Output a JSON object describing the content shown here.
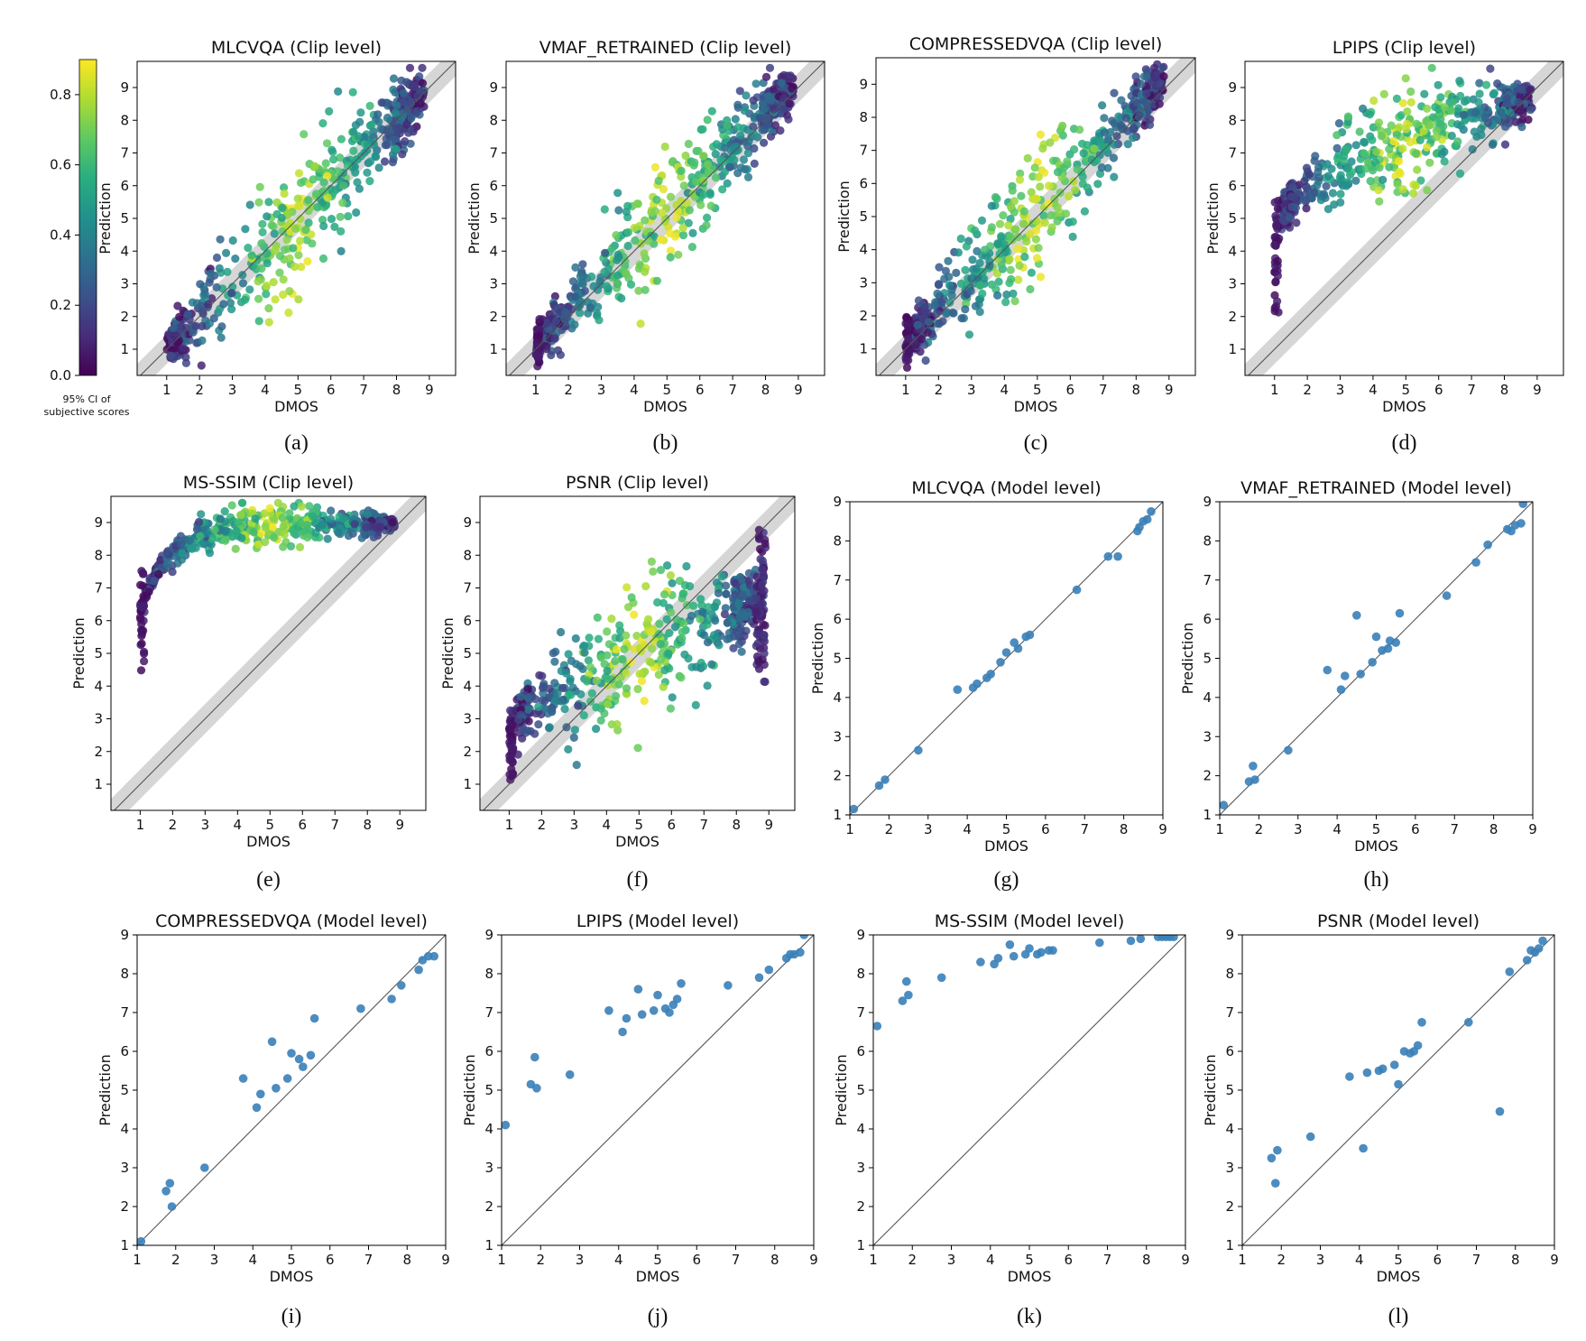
{
  "chart_data": [
    {
      "id": "a",
      "type": "scatter",
      "level": "clip",
      "title": "MLCVQA (Clip level)",
      "caption": "(a)",
      "xlabel": "DMOS",
      "ylabel": "Prediction",
      "xlim": [
        0.1,
        9.8
      ],
      "ylim": [
        0.2,
        9.8
      ],
      "xticks": [
        1,
        2,
        3,
        4,
        5,
        6,
        7,
        8,
        9
      ],
      "yticks": [
        1,
        2,
        3,
        4,
        5,
        6,
        7,
        8,
        9
      ],
      "identity_line": true,
      "ci_band": true,
      "color_by": "95% CI of subjective scores",
      "trend": {
        "spread": 0.95,
        "bias": 0,
        "floor": false,
        "ceil": false
      },
      "seed": 11
    },
    {
      "id": "b",
      "type": "scatter",
      "level": "clip",
      "title": "VMAF_RETRAINED (Clip level)",
      "caption": "(b)",
      "xlabel": "DMOS",
      "ylabel": "Prediction",
      "xlim": [
        0.1,
        9.8
      ],
      "ylim": [
        0.2,
        9.8
      ],
      "xticks": [
        1,
        2,
        3,
        4,
        5,
        6,
        7,
        8,
        9
      ],
      "yticks": [
        1,
        2,
        3,
        4,
        5,
        6,
        7,
        8,
        9
      ],
      "identity_line": true,
      "ci_band": true,
      "color_by": "95% CI of subjective scores",
      "trend": {
        "spread": 0.85,
        "bias": 0.15,
        "floor": true,
        "ceil": false
      },
      "seed": 23
    },
    {
      "id": "c",
      "type": "scatter",
      "level": "clip",
      "title": "COMPRESSEDVQA (Clip level)",
      "caption": "(c)",
      "xlabel": "DMOS",
      "ylabel": "Prediction",
      "xlim": [
        0.1,
        9.8
      ],
      "ylim": [
        0.2,
        9.8
      ],
      "xticks": [
        1,
        2,
        3,
        4,
        5,
        6,
        7,
        8,
        9
      ],
      "yticks": [
        1,
        2,
        3,
        4,
        5,
        6,
        7,
        8,
        9
      ],
      "identity_line": true,
      "ci_band": true,
      "color_by": "95% CI of subjective scores",
      "trend": {
        "spread": 0.85,
        "bias": 0.25,
        "floor": true,
        "ceil": false
      },
      "seed": 37
    },
    {
      "id": "d",
      "type": "scatter",
      "level": "clip",
      "title": "LPIPS (Clip level)",
      "caption": "(d)",
      "xlabel": "DMOS",
      "ylabel": "Prediction",
      "xlim": [
        0.1,
        9.8
      ],
      "ylim": [
        0.2,
        9.8
      ],
      "xticks": [
        1,
        2,
        3,
        4,
        5,
        6,
        7,
        8,
        9
      ],
      "yticks": [
        1,
        2,
        3,
        4,
        5,
        6,
        7,
        8,
        9
      ],
      "identity_line": true,
      "ci_band": true,
      "color_by": "95% CI of subjective scores",
      "trend": {
        "curve": "log",
        "lo": 4.2,
        "hi": 8.6,
        "spread": 0.75,
        "floor": true
      },
      "seed": 41
    },
    {
      "id": "e",
      "type": "scatter",
      "level": "clip",
      "title": "MS-SSIM (Clip level)",
      "caption": "(e)",
      "xlabel": "DMOS",
      "ylabel": "Prediction",
      "xlim": [
        0.1,
        9.8
      ],
      "ylim": [
        0.2,
        9.8
      ],
      "xticks": [
        1,
        2,
        3,
        4,
        5,
        6,
        7,
        8,
        9
      ],
      "yticks": [
        1,
        2,
        3,
        4,
        5,
        6,
        7,
        8,
        9
      ],
      "identity_line": true,
      "ci_band": true,
      "color_by": "95% CI of subjective scores",
      "trend": {
        "curve": "sat",
        "lo": 6.3,
        "hi": 8.95,
        "spread": 0.35,
        "floor": true
      },
      "seed": 53
    },
    {
      "id": "f",
      "type": "scatter",
      "level": "clip",
      "title": "PSNR (Clip level)",
      "caption": "(f)",
      "xlabel": "DMOS",
      "ylabel": "Prediction",
      "xlim": [
        0.1,
        9.8
      ],
      "ylim": [
        0.2,
        9.8
      ],
      "xticks": [
        1,
        2,
        3,
        4,
        5,
        6,
        7,
        8,
        9
      ],
      "yticks": [
        1,
        2,
        3,
        4,
        5,
        6,
        7,
        8,
        9
      ],
      "identity_line": true,
      "ci_band": true,
      "color_by": "95% CI of subjective scores",
      "trend": {
        "curve": "flat",
        "lo": 3.0,
        "hi": 6.8,
        "spread": 1.0,
        "floor": true,
        "ceil": true
      },
      "seed": 67
    },
    {
      "id": "g",
      "type": "scatter",
      "level": "model",
      "title": "MLCVQA (Model level)",
      "caption": "(g)",
      "xlabel": "DMOS",
      "ylabel": "Prediction",
      "xlim": [
        1,
        9
      ],
      "ylim": [
        1,
        9
      ],
      "xticks": [
        1,
        2,
        3,
        4,
        5,
        6,
        7,
        8,
        9
      ],
      "yticks": [
        1,
        2,
        3,
        4,
        5,
        6,
        7,
        8,
        9
      ],
      "identity_line": true,
      "points": [
        [
          1.1,
          1.15
        ],
        [
          1.75,
          1.75
        ],
        [
          1.9,
          1.9
        ],
        [
          2.75,
          2.65
        ],
        [
          3.75,
          4.2
        ],
        [
          4.15,
          4.25
        ],
        [
          4.25,
          4.35
        ],
        [
          4.5,
          4.5
        ],
        [
          4.6,
          4.6
        ],
        [
          4.85,
          4.9
        ],
        [
          5.0,
          5.15
        ],
        [
          5.2,
          5.4
        ],
        [
          5.3,
          5.25
        ],
        [
          5.5,
          5.55
        ],
        [
          5.6,
          5.6
        ],
        [
          6.8,
          6.75
        ],
        [
          7.6,
          7.6
        ],
        [
          7.85,
          7.6
        ],
        [
          8.35,
          8.25
        ],
        [
          8.4,
          8.35
        ],
        [
          8.5,
          8.5
        ],
        [
          8.6,
          8.55
        ],
        [
          8.7,
          8.75
        ]
      ]
    },
    {
      "id": "h",
      "type": "scatter",
      "level": "model",
      "title": "VMAF_RETRAINED (Model level)",
      "caption": "(h)",
      "xlabel": "DMOS",
      "ylabel": "Prediction",
      "xlim": [
        1,
        9
      ],
      "ylim": [
        1,
        9
      ],
      "xticks": [
        1,
        2,
        3,
        4,
        5,
        6,
        7,
        8,
        9
      ],
      "yticks": [
        1,
        2,
        3,
        4,
        5,
        6,
        7,
        8,
        9
      ],
      "identity_line": true,
      "points": [
        [
          1.1,
          1.25
        ],
        [
          1.75,
          1.85
        ],
        [
          1.85,
          2.25
        ],
        [
          1.9,
          1.9
        ],
        [
          2.75,
          2.65
        ],
        [
          3.75,
          4.7
        ],
        [
          4.1,
          4.2
        ],
        [
          4.2,
          4.55
        ],
        [
          4.5,
          6.1
        ],
        [
          4.6,
          4.6
        ],
        [
          4.9,
          4.9
        ],
        [
          5.0,
          5.55
        ],
        [
          5.15,
          5.2
        ],
        [
          5.3,
          5.25
        ],
        [
          5.35,
          5.45
        ],
        [
          5.5,
          5.4
        ],
        [
          5.6,
          6.15
        ],
        [
          6.8,
          6.6
        ],
        [
          7.55,
          7.45
        ],
        [
          7.85,
          7.9
        ],
        [
          8.35,
          8.3
        ],
        [
          8.45,
          8.25
        ],
        [
          8.55,
          8.4
        ],
        [
          8.7,
          8.45
        ],
        [
          8.75,
          8.95
        ]
      ]
    },
    {
      "id": "i",
      "type": "scatter",
      "level": "model",
      "title": "COMPRESSEDVQA (Model level)",
      "caption": "(i)",
      "xlabel": "DMOS",
      "ylabel": "Prediction",
      "xlim": [
        1,
        9
      ],
      "ylim": [
        1,
        9
      ],
      "xticks": [
        1,
        2,
        3,
        4,
        5,
        6,
        7,
        8,
        9
      ],
      "yticks": [
        1,
        2,
        3,
        4,
        5,
        6,
        7,
        8,
        9
      ],
      "identity_line": true,
      "points": [
        [
          1.1,
          1.1
        ],
        [
          1.75,
          2.4
        ],
        [
          1.85,
          2.6
        ],
        [
          1.9,
          2.0
        ],
        [
          2.75,
          3.0
        ],
        [
          3.75,
          5.3
        ],
        [
          4.1,
          4.55
        ],
        [
          4.2,
          4.9
        ],
        [
          4.5,
          6.25
        ],
        [
          4.6,
          5.05
        ],
        [
          4.9,
          5.3
        ],
        [
          5.0,
          5.95
        ],
        [
          5.2,
          5.8
        ],
        [
          5.3,
          5.6
        ],
        [
          5.5,
          5.9
        ],
        [
          5.6,
          6.85
        ],
        [
          6.8,
          7.1
        ],
        [
          7.6,
          7.35
        ],
        [
          7.85,
          7.7
        ],
        [
          8.3,
          8.1
        ],
        [
          8.4,
          8.35
        ],
        [
          8.55,
          8.45
        ],
        [
          8.7,
          8.45
        ]
      ]
    },
    {
      "id": "j",
      "type": "scatter",
      "level": "model",
      "title": "LPIPS (Model level)",
      "caption": "(j)",
      "xlabel": "DMOS",
      "ylabel": "Prediction",
      "xlim": [
        1,
        9
      ],
      "ylim": [
        1,
        9
      ],
      "xticks": [
        1,
        2,
        3,
        4,
        5,
        6,
        7,
        8,
        9
      ],
      "yticks": [
        1,
        2,
        3,
        4,
        5,
        6,
        7,
        8,
        9
      ],
      "identity_line": true,
      "points": [
        [
          1.1,
          4.1
        ],
        [
          1.75,
          5.15
        ],
        [
          1.85,
          5.85
        ],
        [
          1.9,
          5.05
        ],
        [
          2.75,
          5.4
        ],
        [
          3.75,
          7.05
        ],
        [
          4.1,
          6.5
        ],
        [
          4.2,
          6.85
        ],
        [
          4.5,
          7.6
        ],
        [
          4.6,
          6.95
        ],
        [
          4.9,
          7.05
        ],
        [
          5.0,
          7.45
        ],
        [
          5.2,
          7.1
        ],
        [
          5.3,
          7.0
        ],
        [
          5.4,
          7.2
        ],
        [
          5.5,
          7.35
        ],
        [
          5.6,
          7.75
        ],
        [
          6.8,
          7.7
        ],
        [
          7.6,
          7.9
        ],
        [
          7.85,
          8.1
        ],
        [
          8.3,
          8.4
        ],
        [
          8.4,
          8.5
        ],
        [
          8.5,
          8.5
        ],
        [
          8.65,
          8.55
        ],
        [
          8.75,
          9.0
        ]
      ]
    },
    {
      "id": "k",
      "type": "scatter",
      "level": "model",
      "title": "MS-SSIM (Model level)",
      "caption": "(k)",
      "xlabel": "DMOS",
      "ylabel": "Prediction",
      "xlim": [
        1,
        9
      ],
      "ylim": [
        1,
        9
      ],
      "xticks": [
        1,
        2,
        3,
        4,
        5,
        6,
        7,
        8,
        9
      ],
      "yticks": [
        1,
        2,
        3,
        4,
        5,
        6,
        7,
        8,
        9
      ],
      "identity_line": true,
      "points": [
        [
          1.1,
          6.65
        ],
        [
          1.75,
          7.3
        ],
        [
          1.85,
          7.8
        ],
        [
          1.9,
          7.45
        ],
        [
          2.75,
          7.9
        ],
        [
          3.75,
          8.3
        ],
        [
          4.1,
          8.25
        ],
        [
          4.2,
          8.4
        ],
        [
          4.5,
          8.75
        ],
        [
          4.6,
          8.45
        ],
        [
          4.9,
          8.5
        ],
        [
          5.0,
          8.65
        ],
        [
          5.2,
          8.5
        ],
        [
          5.3,
          8.55
        ],
        [
          5.5,
          8.6
        ],
        [
          5.6,
          8.6
        ],
        [
          6.8,
          8.8
        ],
        [
          7.6,
          8.85
        ],
        [
          7.85,
          8.9
        ],
        [
          8.3,
          8.95
        ],
        [
          8.4,
          8.95
        ],
        [
          8.5,
          8.95
        ],
        [
          8.6,
          8.95
        ],
        [
          8.7,
          8.95
        ]
      ]
    },
    {
      "id": "l",
      "type": "scatter",
      "level": "model",
      "title": "PSNR (Model level)",
      "caption": "(l)",
      "xlabel": "DMOS",
      "ylabel": "Prediction",
      "xlim": [
        1,
        9
      ],
      "ylim": [
        1,
        9
      ],
      "xticks": [
        1,
        2,
        3,
        4,
        5,
        6,
        7,
        8,
        9
      ],
      "yticks": [
        1,
        2,
        3,
        4,
        5,
        6,
        7,
        8,
        9
      ],
      "identity_line": true,
      "points": [
        [
          1.75,
          3.25
        ],
        [
          1.85,
          2.6
        ],
        [
          1.9,
          3.45
        ],
        [
          2.75,
          3.8
        ],
        [
          3.75,
          5.35
        ],
        [
          4.1,
          3.5
        ],
        [
          4.2,
          5.45
        ],
        [
          4.5,
          5.5
        ],
        [
          4.6,
          5.55
        ],
        [
          4.9,
          5.65
        ],
        [
          5.0,
          5.15
        ],
        [
          5.15,
          6.0
        ],
        [
          5.3,
          5.95
        ],
        [
          5.4,
          6.0
        ],
        [
          5.5,
          6.15
        ],
        [
          5.6,
          6.75
        ],
        [
          6.8,
          6.75
        ],
        [
          7.6,
          4.45
        ],
        [
          7.85,
          8.05
        ],
        [
          8.3,
          8.35
        ],
        [
          8.4,
          8.6
        ],
        [
          8.5,
          8.55
        ],
        [
          8.6,
          8.65
        ],
        [
          8.7,
          8.85
        ]
      ]
    }
  ],
  "colorbar": {
    "label": "95% CI of\nsubjective scores",
    "ticks": [
      0.0,
      0.2,
      0.4,
      0.6,
      0.8
    ],
    "range": [
      0.0,
      0.9
    ],
    "colormap": "viridis"
  },
  "colors": {
    "model_marker": "#3a80b8",
    "ci_band": "#cfcfcf",
    "identity": "#555555"
  }
}
